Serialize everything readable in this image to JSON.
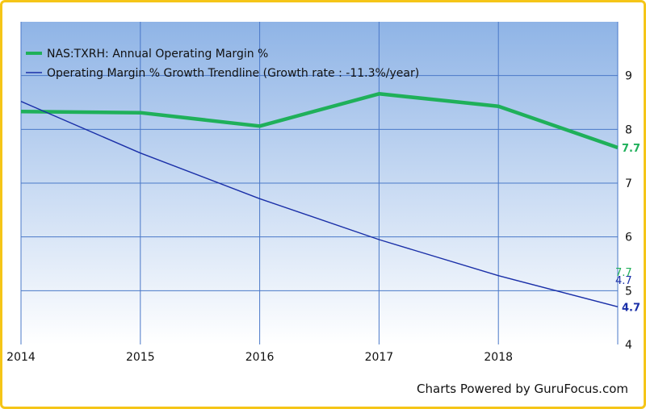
{
  "colors": {
    "frame": "#f5c518",
    "plot_top": "#8fb4e6",
    "plot_bottom": "#ffffff",
    "grid": "#4a78c8",
    "series_main": "#1fb05a",
    "series_trend": "#1a2fa8"
  },
  "chart_data": {
    "type": "line",
    "x": [
      2014,
      2015,
      2016,
      2017,
      2018,
      2019
    ],
    "xticks": [
      "2014",
      "2015",
      "2016",
      "2017",
      "2018"
    ],
    "yticks": [
      "4",
      "5",
      "6",
      "7",
      "8",
      "9"
    ],
    "ylim": [
      4,
      10
    ],
    "grid": true,
    "legend": "top-left",
    "series": [
      {
        "name": "NAS:TXRH: Annual Operating Margin %",
        "values": [
          8.33,
          8.31,
          8.06,
          8.66,
          8.43,
          7.66
        ],
        "end_label": "7.7"
      },
      {
        "name": "Operating Margin % Growth Trendline (Growth rate : -11.3%/year)",
        "values": [
          8.52,
          7.56,
          6.71,
          5.95,
          5.28,
          4.7
        ],
        "end_label": "4.7"
      }
    ],
    "side_labels": [
      "7.7",
      "4.7"
    ]
  },
  "credit": "Charts Powered by GuruFocus.com"
}
